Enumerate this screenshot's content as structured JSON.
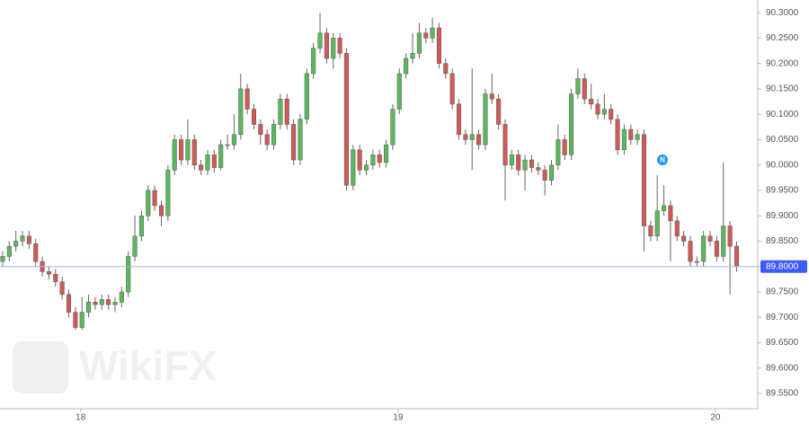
{
  "chart_data": {
    "type": "candlestick",
    "x": [
      0,
      1,
      2,
      3,
      4,
      5,
      6,
      7,
      8,
      9,
      10,
      11,
      12,
      13,
      14,
      15,
      16,
      17,
      18,
      19,
      20,
      21,
      22,
      23,
      24,
      25,
      26,
      27,
      28,
      29,
      30,
      31,
      32,
      33,
      34,
      35,
      36,
      37,
      38,
      39,
      40,
      41,
      42,
      43,
      44,
      45,
      46,
      47,
      48,
      49,
      50,
      51,
      52,
      53,
      54,
      55,
      56,
      57,
      58,
      59,
      60,
      61,
      62,
      63,
      64,
      65,
      66,
      67,
      68,
      69,
      70,
      71,
      72,
      73,
      74,
      75,
      76,
      77,
      78,
      79,
      80,
      81,
      82,
      83,
      84,
      85,
      86,
      87,
      88,
      89,
      90,
      91,
      92,
      93,
      94,
      95,
      96,
      97,
      98,
      99,
      100,
      101,
      102,
      103,
      104,
      105,
      106,
      107,
      108,
      109,
      110,
      111
    ],
    "open": [
      89.81,
      89.82,
      89.84,
      89.85,
      89.86,
      89.845,
      89.81,
      89.79,
      89.785,
      89.77,
      89.745,
      89.71,
      89.68,
      89.71,
      89.73,
      89.725,
      89.735,
      89.725,
      89.73,
      89.75,
      89.82,
      89.86,
      89.9,
      89.95,
      89.92,
      89.9,
      89.99,
      90.05,
      90.01,
      90.05,
      90.0,
      89.99,
      90.02,
      89.995,
      90.04,
      90.04,
      90.06,
      90.15,
      90.11,
      90.08,
      90.06,
      90.04,
      90.08,
      90.13,
      90.08,
      90.01,
      90.09,
      90.18,
      90.23,
      90.26,
      90.21,
      90.25,
      90.22,
      89.96,
      90.03,
      89.99,
      90.0,
      90.02,
      90.005,
      90.04,
      90.11,
      90.18,
      90.21,
      90.22,
      90.26,
      90.25,
      90.27,
      90.2,
      90.18,
      90.12,
      90.06,
      90.05,
      90.06,
      90.04,
      90.14,
      90.13,
      90.08,
      90.0,
      90.02,
      89.99,
      90.01,
      89.995,
      89.99,
      89.97,
      90.0,
      90.05,
      90.02,
      90.14,
      90.17,
      90.13,
      90.12,
      90.1,
      90.11,
      90.09,
      90.03,
      90.07,
      90.05,
      90.06,
      89.88,
      89.86,
      89.91,
      89.92,
      89.89,
      89.86,
      89.85,
      89.81,
      89.81,
      89.86,
      89.85,
      89.82,
      89.88,
      89.84
    ],
    "high": [
      89.83,
      89.85,
      89.87,
      89.87,
      89.87,
      89.855,
      89.82,
      89.8,
      89.795,
      89.78,
      89.755,
      89.72,
      89.74,
      89.745,
      89.74,
      89.745,
      89.745,
      89.74,
      89.76,
      89.83,
      89.9,
      89.91,
      89.96,
      89.96,
      89.93,
      90.0,
      90.06,
      90.06,
      90.09,
      90.06,
      90.01,
      90.03,
      90.03,
      90.05,
      90.06,
      90.1,
      90.18,
      90.16,
      90.12,
      90.09,
      90.07,
      90.09,
      90.14,
      90.14,
      90.09,
      90.1,
      90.19,
      90.24,
      90.3,
      90.27,
      90.26,
      90.26,
      90.23,
      90.04,
      90.04,
      90.01,
      90.03,
      90.03,
      90.05,
      90.12,
      90.19,
      90.22,
      90.26,
      90.28,
      90.27,
      90.29,
      90.28,
      90.21,
      90.19,
      90.13,
      90.07,
      90.19,
      90.07,
      90.15,
      90.18,
      90.14,
      90.09,
      90.03,
      90.03,
      90.02,
      90.02,
      90.005,
      90.0,
      90.01,
      90.08,
      90.06,
      90.15,
      90.19,
      90.18,
      90.16,
      90.13,
      90.14,
      90.12,
      90.1,
      90.08,
      90.08,
      90.07,
      90.07,
      89.89,
      89.98,
      89.96,
      89.93,
      89.9,
      89.87,
      89.86,
      89.82,
      89.87,
      89.87,
      89.86,
      90.005,
      89.89,
      89.85
    ],
    "low": [
      89.8,
      89.81,
      89.83,
      89.84,
      89.835,
      89.8,
      89.78,
      89.775,
      89.76,
      89.735,
      89.7,
      89.675,
      89.675,
      89.7,
      89.715,
      89.715,
      89.715,
      89.71,
      89.72,
      89.74,
      89.81,
      89.85,
      89.89,
      89.91,
      89.88,
      89.89,
      89.98,
      90.0,
      90.0,
      89.99,
      89.98,
      89.98,
      89.985,
      89.99,
      90.03,
      90.03,
      90.05,
      90.1,
      90.07,
      90.04,
      90.03,
      90.03,
      90.07,
      90.07,
      90.0,
      90.0,
      90.08,
      90.17,
      90.22,
      90.2,
      90.19,
      90.21,
      89.95,
      89.95,
      89.98,
      89.98,
      89.99,
      89.995,
      89.995,
      90.03,
      90.1,
      90.17,
      90.2,
      90.21,
      90.24,
      90.24,
      90.19,
      90.17,
      90.11,
      90.05,
      90.04,
      89.99,
      90.03,
      90.03,
      90.12,
      90.07,
      89.93,
      89.99,
      89.98,
      89.95,
      89.985,
      89.98,
      89.94,
      89.96,
      89.99,
      90.01,
      90.01,
      90.13,
      90.12,
      90.11,
      90.09,
      90.09,
      90.08,
      90.02,
      90.02,
      90.04,
      90.04,
      89.83,
      89.85,
      89.85,
      89.9,
      89.81,
      89.85,
      89.84,
      89.8,
      89.8,
      89.8,
      89.84,
      89.81,
      89.81,
      89.745,
      89.79
    ],
    "close": [
      89.82,
      89.84,
      89.85,
      89.86,
      89.845,
      89.81,
      89.79,
      89.785,
      89.77,
      89.745,
      89.71,
      89.68,
      89.71,
      89.73,
      89.725,
      89.735,
      89.725,
      89.73,
      89.75,
      89.82,
      89.86,
      89.9,
      89.95,
      89.92,
      89.9,
      89.99,
      90.05,
      90.01,
      90.05,
      90.0,
      89.99,
      90.02,
      89.995,
      90.04,
      90.04,
      90.06,
      90.15,
      90.11,
      90.08,
      90.06,
      90.04,
      90.08,
      90.13,
      90.08,
      90.01,
      90.09,
      90.18,
      90.23,
      90.26,
      90.21,
      90.25,
      90.22,
      89.96,
      90.03,
      89.99,
      90.0,
      90.02,
      90.005,
      90.04,
      90.11,
      90.18,
      90.21,
      90.22,
      90.26,
      90.25,
      90.27,
      90.2,
      90.18,
      90.12,
      90.06,
      90.05,
      90.06,
      90.04,
      90.14,
      90.13,
      90.08,
      90.0,
      90.02,
      89.99,
      90.01,
      89.995,
      89.99,
      89.97,
      90.0,
      90.05,
      90.02,
      90.14,
      90.17,
      90.13,
      90.12,
      90.1,
      90.11,
      90.09,
      90.03,
      90.07,
      90.05,
      90.06,
      89.88,
      89.86,
      89.91,
      89.92,
      89.89,
      89.86,
      89.85,
      89.81,
      89.81,
      89.86,
      89.85,
      89.82,
      89.88,
      89.84,
      89.8
    ],
    "up_color": "#5cb85c",
    "down_color": "#d05a55",
    "xlim": [
      -0.4,
      114.2
    ],
    "xticks": [
      {
        "value": 11.8,
        "label": "18"
      },
      {
        "value": 59.8,
        "label": "19"
      },
      {
        "value": 107.8,
        "label": "20"
      }
    ],
    "ylim": [
      89.52,
      90.325
    ],
    "yticks": [
      {
        "value": 90.3,
        "label": "90.3000"
      },
      {
        "value": 90.25,
        "label": "90.2500"
      },
      {
        "value": 90.2,
        "label": "90.2000"
      },
      {
        "value": 90.15,
        "label": "90.1500"
      },
      {
        "value": 90.1,
        "label": "90.1000"
      },
      {
        "value": 90.05,
        "label": "90.0500"
      },
      {
        "value": 90.0,
        "label": "90.0000"
      },
      {
        "value": 89.95,
        "label": "89.9500"
      },
      {
        "value": 89.9,
        "label": "89.9000"
      },
      {
        "value": 89.85,
        "label": "89.8500"
      },
      {
        "value": 89.8,
        "label": "89.8000"
      },
      {
        "value": 89.75,
        "label": "89.7500"
      },
      {
        "value": 89.7,
        "label": "89.7000"
      },
      {
        "value": 89.65,
        "label": "89.6500"
      },
      {
        "value": 89.6,
        "label": "89.6000"
      },
      {
        "value": 89.55,
        "label": "89.5500"
      }
    ],
    "price_line": {
      "value": 89.8,
      "label": "89.8000",
      "color": "#3d5afe"
    },
    "event_marker": "N",
    "watermark": "WikiFX"
  }
}
